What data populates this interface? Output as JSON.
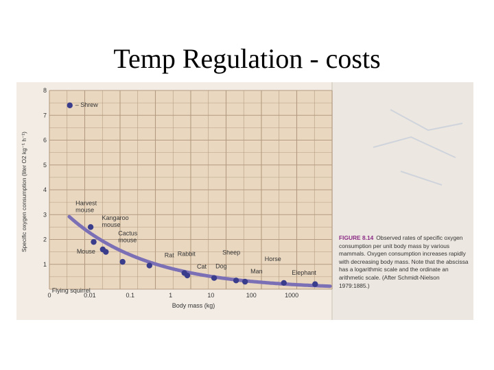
{
  "slide": {
    "title": "Temp Regulation - costs"
  },
  "figure": {
    "number": "FIGURE 8.14",
    "caption": "Observed rates of specific oxygen consumption per unit body mass by various mammals. Oxygen consumption increases rapidly with decreasing body mass. Note that the abscissa has a logarithmic scale and the ordinate an arithmetic scale. (After Schmidt-Nielson 1979:1885.)"
  },
  "colors": {
    "curve": "#7b6fb6",
    "point": "#3a3c8c",
    "grid": "#b39a80",
    "plot_bg": "#e9d7bf",
    "photo_bg": "#f2ece4"
  },
  "chart_data": {
    "type": "scatter",
    "title": "",
    "xlabel": "Body mass (kg)",
    "ylabel": "Specific oxygen consumption (liter O2 kg⁻¹ h⁻¹)",
    "x_scale": "log",
    "x_ticks": [
      "0",
      "0.01",
      "0.1",
      "1",
      "10",
      "100",
      "1000"
    ],
    "y_ticks": [
      "1",
      "2",
      "3",
      "4",
      "5",
      "6",
      "7",
      "8"
    ],
    "xlim": [
      0.001,
      10000
    ],
    "ylim": [
      0,
      8
    ],
    "grid": true,
    "series": [
      {
        "points": [
          {
            "label": "Shrew",
            "x": 0.0032,
            "y": 7.4
          },
          {
            "label": "Harvest mouse",
            "x": 0.0105,
            "y": 2.5
          },
          {
            "label": "Kangaroo mouse",
            "x": 0.0125,
            "y": 1.9
          },
          {
            "label": "Mouse",
            "x": 0.021,
            "y": 1.6
          },
          {
            "label": "Cactus mouse",
            "x": 0.025,
            "y": 1.5
          },
          {
            "label": "Flying squirrel",
            "x": 0.065,
            "y": 1.1
          },
          {
            "label": "Rat",
            "x": 0.3,
            "y": 0.95
          },
          {
            "label": "Rabbit",
            "x": 2.2,
            "y": 0.65
          },
          {
            "label": "Cat",
            "x": 2.6,
            "y": 0.55
          },
          {
            "label": "Dog",
            "x": 12,
            "y": 0.45
          },
          {
            "label": "Sheep",
            "x": 42,
            "y": 0.35
          },
          {
            "label": "Man",
            "x": 70,
            "y": 0.3
          },
          {
            "label": "Horse",
            "x": 640,
            "y": 0.25
          },
          {
            "label": "Elephant",
            "x": 3800,
            "y": 0.2
          }
        ]
      }
    ]
  }
}
